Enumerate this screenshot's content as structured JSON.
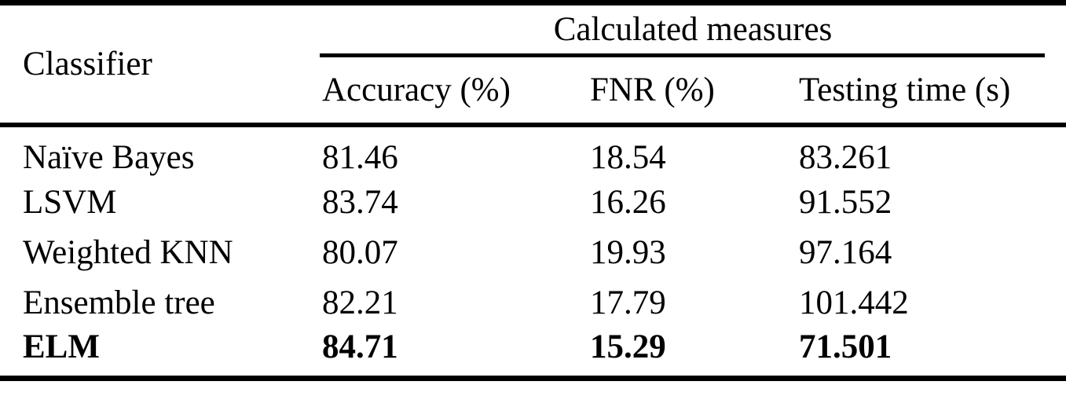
{
  "table": {
    "corner_header": "Classifier",
    "group_header": "Calculated measures",
    "columns": {
      "accuracy": "Accuracy (%)",
      "fnr": "FNR (%)",
      "testing_time": "Testing time (s)"
    },
    "rows": [
      {
        "classifier": "Naïve Bayes",
        "accuracy": "81.46",
        "fnr": "18.54",
        "testing_time": "83.261"
      },
      {
        "classifier": "LSVM",
        "accuracy": "83.74",
        "fnr": "16.26",
        "testing_time": "91.552"
      },
      {
        "classifier": "Weighted KNN",
        "accuracy": "80.07",
        "fnr": "19.93",
        "testing_time": "97.164"
      },
      {
        "classifier": "Ensemble tree",
        "accuracy": "82.21",
        "fnr": "17.79",
        "testing_time": "101.442"
      },
      {
        "classifier": "ELM",
        "accuracy": "84.71",
        "fnr": "15.29",
        "testing_time": "71.501"
      }
    ]
  },
  "colors": {
    "text": "#000000",
    "background": "#ffffff",
    "rule": "#000000"
  }
}
